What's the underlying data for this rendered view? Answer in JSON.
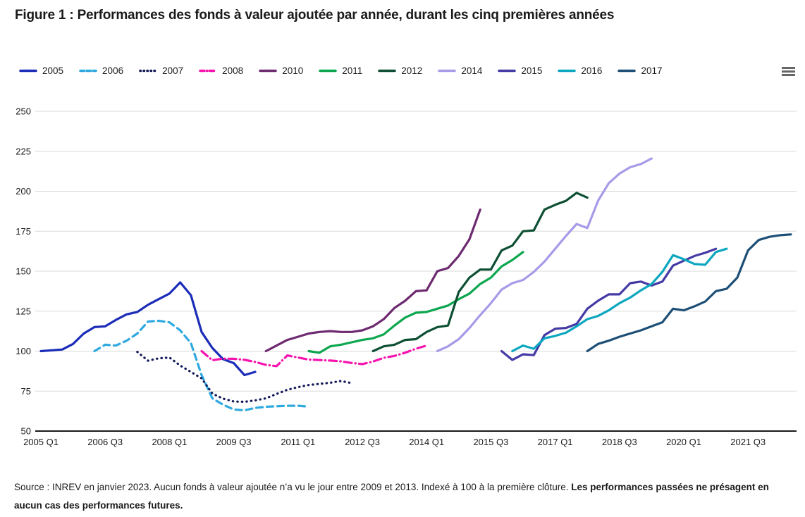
{
  "figure": {
    "title": "Figure 1 : Performances des fonds à valeur ajoutée par année, durant les cinq premières années"
  },
  "header": {
    "export_menu_icon": "hamburger"
  },
  "footnote": {
    "regular": "Source : INREV en janvier 2023. Aucun fonds à valeur ajoutée n’a vu le jour entre 2009 et 2013. Indexé à 100 à la première clôture. ",
    "bold": "Les performances passées ne présagent en aucun cas des performances futures."
  },
  "chart_data": {
    "type": "line",
    "title": "Performances des fonds à valeur ajoutée par année, durant les cinq premières années",
    "index_base": 100,
    "grid": true,
    "legend_position": "top",
    "axis_style": {
      "grid_color": "#d9d9d9",
      "axis_line_color": "#1a1a1a",
      "label_color": "#1a1a1a"
    },
    "y_axis": {
      "min": 50,
      "max": 250,
      "tick_step": 25,
      "ticks": [
        50,
        75,
        100,
        125,
        150,
        175,
        200,
        225,
        250
      ]
    },
    "x_axis": {
      "unit": "quarters_since_2005_Q1",
      "ticks": [
        {
          "q": 0,
          "label": "2005 Q1"
        },
        {
          "q": 6,
          "label": "2006 Q3"
        },
        {
          "q": 12,
          "label": "2008 Q1"
        },
        {
          "q": 18,
          "label": "2009 Q3"
        },
        {
          "q": 24,
          "label": "2011 Q1"
        },
        {
          "q": 30,
          "label": "2012 Q3"
        },
        {
          "q": 36,
          "label": "2014 Q1"
        },
        {
          "q": 42,
          "label": "2015 Q3"
        },
        {
          "q": 48,
          "label": "2017 Q1"
        },
        {
          "q": 54,
          "label": "2018 Q3"
        },
        {
          "q": 60,
          "label": "2020 Q1"
        },
        {
          "q": 66,
          "label": "2021 Q3"
        }
      ]
    },
    "series": [
      {
        "name": "2005",
        "color": "#1b2db8",
        "dash": "solid",
        "start_quarter": 0,
        "values": [
          100,
          100.5,
          101,
          104.5,
          111,
          115,
          115.5,
          119.5,
          123,
          124.5,
          129,
          132.5,
          136,
          143,
          135,
          112,
          102,
          95,
          92.5,
          85,
          87
        ]
      },
      {
        "name": "2006",
        "color": "#2fa9e0",
        "dash": "dash",
        "start_quarter": 5,
        "values": [
          100,
          104,
          103.5,
          106.5,
          111,
          118.5,
          119,
          118,
          113,
          105,
          85,
          70.5,
          66.5,
          63.5,
          63,
          64.5,
          65.2,
          65.5,
          65.8,
          65.8,
          65.3
        ]
      },
      {
        "name": "2007",
        "color": "#141b5a",
        "dash": "dot",
        "start_quarter": 9,
        "values": [
          99.5,
          94,
          95.5,
          96,
          91,
          87,
          83,
          73.5,
          70.3,
          68.5,
          68.3,
          69.2,
          70.5,
          73.2,
          75.8,
          77.5,
          78.8,
          79.5,
          80.2,
          81.3,
          80
        ]
      },
      {
        "name": "2008",
        "color": "#f713ae",
        "dash": "dashdot",
        "start_quarter": 15,
        "values": [
          100,
          94.3,
          95.3,
          95.2,
          94.6,
          93.2,
          91.4,
          90.6,
          97.3,
          96,
          94.7,
          94.4,
          94.1,
          93.6,
          92.6,
          91.9,
          93.5,
          95.8,
          97,
          99,
          101.5,
          103.5
        ]
      },
      {
        "name": "2010",
        "color": "#6d2a70",
        "dash": "solid",
        "start_quarter": 21,
        "values": [
          100,
          103.5,
          107,
          109,
          111,
          112,
          112.5,
          112,
          112,
          113,
          115.5,
          120,
          127,
          131.5,
          137.5,
          138,
          150,
          152,
          159.5,
          170,
          188.5
        ]
      },
      {
        "name": "2011",
        "color": "#0ca64e",
        "dash": "solid",
        "start_quarter": 25,
        "values": [
          100,
          99,
          103,
          104,
          105.5,
          107,
          108,
          110.5,
          116,
          121,
          124,
          124.5,
          126.5,
          128.5,
          132.5,
          136,
          142,
          146,
          153,
          157,
          162
        ]
      },
      {
        "name": "2012",
        "color": "#0d4f33",
        "dash": "solid",
        "start_quarter": 31,
        "values": [
          100,
          103,
          104,
          107,
          107.5,
          112,
          115,
          116,
          137,
          146,
          151,
          151,
          163,
          166,
          175,
          175.5,
          188.5,
          191.5,
          194,
          199,
          196
        ]
      },
      {
        "name": "2014",
        "color": "#a79ae8",
        "dash": "solid",
        "start_quarter": 37,
        "values": [
          100,
          103,
          107.5,
          114.5,
          122.5,
          130,
          138.5,
          142.5,
          144.5,
          149.5,
          156,
          164,
          172,
          179.5,
          177,
          194,
          205,
          211,
          215,
          217,
          220.5
        ]
      },
      {
        "name": "2015",
        "color": "#433aa5",
        "dash": "solid",
        "start_quarter": 43,
        "values": [
          100,
          94.5,
          98,
          97.5,
          110,
          114,
          114.5,
          117,
          126.5,
          131.5,
          135.5,
          135.5,
          142.5,
          143.5,
          141,
          143.5,
          153.5,
          156.5,
          159.5,
          161.5,
          164
        ]
      },
      {
        "name": "2016",
        "color": "#0ba7bf",
        "dash": "solid",
        "start_quarter": 44,
        "values": [
          100,
          103.5,
          101.5,
          108,
          109.5,
          111.5,
          115.5,
          120,
          122,
          125.5,
          130,
          133.5,
          138,
          142,
          149.5,
          160,
          157.5,
          154.5,
          154,
          162,
          164
        ]
      },
      {
        "name": "2017",
        "color": "#1d4f76",
        "dash": "solid",
        "start_quarter": 51,
        "values": [
          100,
          104.5,
          106.5,
          109,
          111,
          113,
          115.5,
          118,
          126.5,
          125.5,
          128,
          131,
          137.5,
          139,
          146,
          163,
          169.5,
          171.5,
          172.5,
          173
        ]
      }
    ]
  }
}
